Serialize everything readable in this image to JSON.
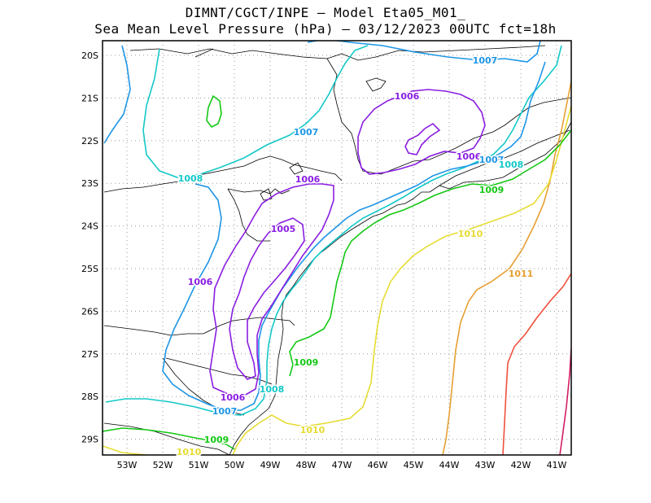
{
  "title": {
    "line1": "DIMNT/CGCT/INPE –  Model Eta05_M01_",
    "line2": "Sea Mean Level Pressure (hPa) – 03/12/2023 00UTC fct=18h"
  },
  "axes": {
    "lon_labels": [
      "53W",
      "52W",
      "51W",
      "50W",
      "49W",
      "48W",
      "47W",
      "46W",
      "45W",
      "44W",
      "43W",
      "42W",
      "41W"
    ],
    "lat_labels": [
      "20S",
      "21S",
      "22S",
      "23S",
      "24S",
      "25S",
      "26S",
      "27S",
      "28S",
      "29S"
    ]
  },
  "colors": {
    "1005": "#8a1ee0",
    "1006": "#8a1ee0",
    "1007": "#1e96e6",
    "1008": "#14c8c8",
    "1009": "#14c814",
    "1010": "#e6dc32",
    "1011": "#e6a032",
    "1012": "#f0503c",
    "1013": "#d21e64",
    "border": "#000000"
  },
  "contour_labels": [
    {
      "id": "l1007a",
      "text": "1007"
    },
    {
      "id": "l1006a",
      "text": "1006"
    },
    {
      "id": "l1007b",
      "text": "1007"
    },
    {
      "id": "l1006b",
      "text": "1006"
    },
    {
      "id": "l1007c",
      "text": "1007"
    },
    {
      "id": "l1008a",
      "text": "1008"
    },
    {
      "id": "l1008b",
      "text": "1008"
    },
    {
      "id": "l1006c",
      "text": "1006"
    },
    {
      "id": "l1009a",
      "text": "1009"
    },
    {
      "id": "l1005",
      "text": "1005"
    },
    {
      "id": "l1010a",
      "text": "1010"
    },
    {
      "id": "l1011",
      "text": "1011"
    },
    {
      "id": "l1006d",
      "text": "1006"
    },
    {
      "id": "l1009b",
      "text": "1009"
    },
    {
      "id": "l1006e",
      "text": "1006"
    },
    {
      "id": "l1008c",
      "text": "1008"
    },
    {
      "id": "l1007d",
      "text": "1007"
    },
    {
      "id": "l1010b",
      "text": "1010"
    },
    {
      "id": "l1009c",
      "text": "1009"
    },
    {
      "id": "l1010c",
      "text": "1010"
    }
  ]
}
